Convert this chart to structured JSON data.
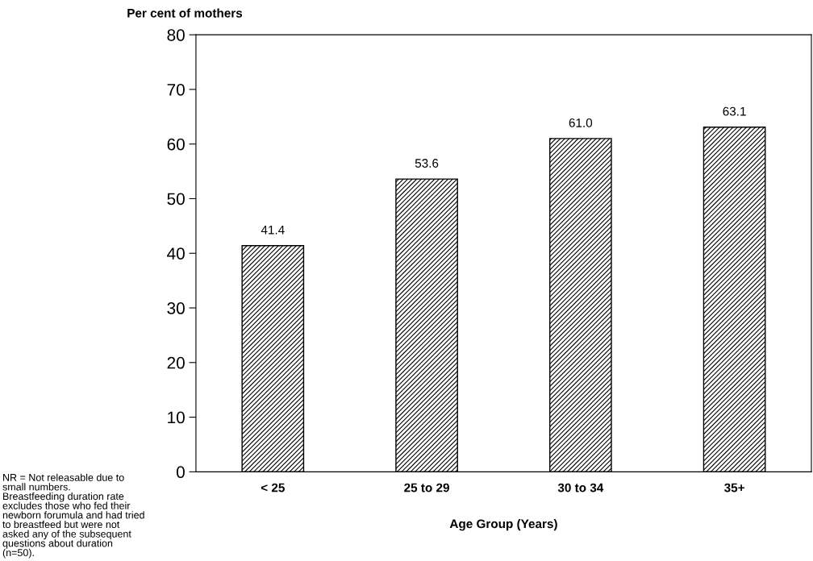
{
  "chart_data": {
    "type": "bar",
    "ylabel": "Per cent of mothers",
    "xlabel": "Age Group (Years)",
    "categories": [
      "< 25",
      "25 to 29",
      "30 to 34",
      "35+"
    ],
    "values": [
      41.4,
      53.6,
      61.0,
      63.1
    ],
    "value_labels": [
      "41.4",
      "53.6",
      "61.0",
      "63.1"
    ],
    "color": "#000000",
    "ylim": [
      0,
      80
    ],
    "yticks": [
      0,
      10,
      20,
      30,
      40,
      50,
      60,
      70,
      80
    ],
    "grid": false,
    "annotations": [
      "NR = Not releasable due to\nsmall numbers.\nBreastfeeding duration rate\nexcludes those who fed their\nnewborn forumula and had tried\nto breastfeed but were not\nasked any of the subsequent\nquestions about duration\n(n=50)."
    ]
  }
}
